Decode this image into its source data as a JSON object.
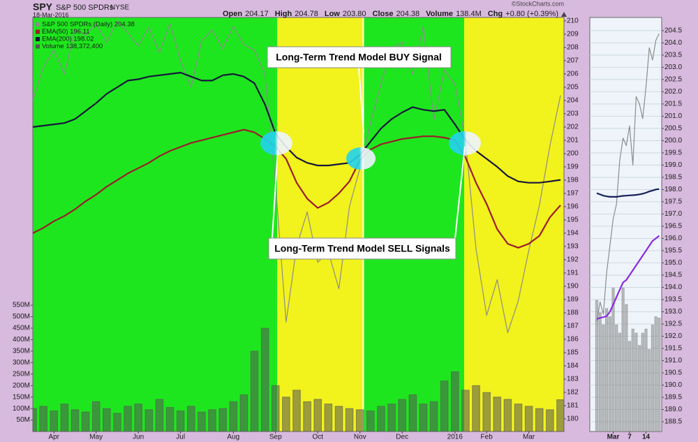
{
  "header": {
    "symbol": "SPY",
    "name": "S&P 500 SPDRs",
    "exchange": "NYSE",
    "date": "18-Mar-2016",
    "watermark": "©StockCharts.com",
    "quote": [
      {
        "label": "Open",
        "value": "204.17"
      },
      {
        "label": "High",
        "value": "204.78"
      },
      {
        "label": "Low",
        "value": "203.80"
      },
      {
        "label": "Close",
        "value": "204.38"
      },
      {
        "label": "Volume",
        "value": "138.4M"
      },
      {
        "label": "Chg",
        "value": "+0.80 (+0.39%)"
      }
    ]
  },
  "chart_data": [
    {
      "type": "line",
      "annotations": [
        "Long-Term Trend Model BUY Signal",
        "Long-Term Trend Model SELL Signals"
      ],
      "categories": [
        null,
        null,
        "Apr",
        null,
        null,
        null,
        "May",
        null,
        null,
        null,
        "Jun",
        null,
        null,
        null,
        "Jul",
        null,
        null,
        null,
        null,
        "Aug",
        null,
        null,
        null,
        "Sep",
        null,
        null,
        null,
        "Oct",
        null,
        null,
        null,
        "Nov",
        null,
        null,
        null,
        "Dec",
        null,
        null,
        null,
        null,
        "2016",
        null,
        null,
        "Feb",
        null,
        null,
        null,
        "Mar",
        null,
        null,
        null
      ],
      "series": [
        {
          "name": "S&P 500 SPDRs (Daily) 204.38",
          "color": "#8c8c8c",
          "values": [
            204.0,
            206.5,
            207.8,
            206.0,
            209.4,
            208.9,
            209.8,
            208.4,
            210.0,
            209.1,
            208.1,
            209.5,
            207.6,
            209.8,
            207.0,
            205.0,
            208.5,
            209.3,
            207.9,
            209.6,
            208.2,
            207.8,
            206.0,
            197.6,
            187.3,
            193.0,
            195.6,
            191.8,
            192.6,
            189.8,
            196.0,
            198.9,
            202.3,
            205.3,
            207.9,
            208.4,
            206.0,
            209.6,
            202.5,
            206.3,
            205.2,
            201.0,
            192.8,
            187.8,
            190.5,
            186.5,
            188.9,
            192.7,
            196.1,
            200.6,
            204.38
          ]
        },
        {
          "name": "EMA(50) 196.11",
          "color": "#9b1c2c",
          "values": [
            194.0,
            194.4,
            194.9,
            195.3,
            195.8,
            196.4,
            196.9,
            197.5,
            198.0,
            198.5,
            198.9,
            199.3,
            199.8,
            200.2,
            200.5,
            200.8,
            201.0,
            201.2,
            201.4,
            201.6,
            201.8,
            201.6,
            201.1,
            200.5,
            199.6,
            197.8,
            196.6,
            195.9,
            196.3,
            197.0,
            197.9,
            199.5,
            200.3,
            200.7,
            200.9,
            201.1,
            201.2,
            201.3,
            201.3,
            201.2,
            201.0,
            199.7,
            197.8,
            196.2,
            194.3,
            193.2,
            192.9,
            193.2,
            193.8,
            195.2,
            196.11
          ]
        },
        {
          "name": "EMA(200) 198.02",
          "color": "#16163c",
          "values": [
            202.0,
            202.1,
            202.2,
            202.3,
            202.6,
            203.2,
            203.8,
            204.5,
            205.0,
            205.5,
            205.6,
            205.8,
            205.9,
            206.0,
            206.1,
            205.8,
            205.5,
            205.5,
            205.9,
            206.0,
            205.8,
            205.3,
            203.7,
            201.5,
            200.5,
            199.7,
            199.3,
            199.1,
            199.1,
            199.2,
            199.3,
            199.9,
            200.9,
            201.9,
            202.6,
            203.1,
            203.5,
            203.3,
            203.2,
            203.3,
            202.2,
            201.0,
            200.2,
            199.6,
            199.0,
            198.3,
            197.9,
            197.8,
            197.8,
            197.9,
            198.02
          ]
        },
        {
          "name": "Volume 138,372,400",
          "color": "#555555",
          "type": "bar",
          "axis": "y2",
          "values": [
            100,
            110,
            90,
            120,
            95,
            85,
            130,
            100,
            80,
            110,
            120,
            95,
            140,
            105,
            90,
            110,
            85,
            95,
            100,
            130,
            160,
            350,
            450,
            200,
            150,
            180,
            130,
            140,
            120,
            110,
            100,
            95,
            90,
            110,
            120,
            140,
            160,
            120,
            130,
            220,
            260,
            180,
            200,
            170,
            150,
            140,
            120,
            110,
            100,
            95,
            138.3724
          ]
        }
      ],
      "ylim": [
        179.05,
        210.26
      ],
      "yticks": [
        180,
        181,
        182,
        183,
        184,
        185,
        186,
        187,
        188,
        189,
        190,
        191,
        192,
        193,
        194,
        195,
        196,
        197,
        198,
        199,
        200,
        201,
        202,
        203,
        204,
        205,
        206,
        207,
        208,
        209,
        210
      ],
      "y2lim": [
        0,
        1803
      ],
      "y2ticks": [
        {
          "value": 50,
          "label": "50M"
        },
        {
          "value": 100,
          "label": "100M"
        },
        {
          "value": 150,
          "label": "150M"
        },
        {
          "value": 200,
          "label": "200M"
        },
        {
          "value": 250,
          "label": "250M"
        },
        {
          "value": 300,
          "label": "300M"
        },
        {
          "value": 350,
          "label": "350M"
        },
        {
          "value": 400,
          "label": "400M"
        },
        {
          "value": 450,
          "label": "450M"
        },
        {
          "value": 500,
          "label": "500M"
        },
        {
          "value": 550,
          "label": "550M"
        }
      ],
      "grid": false
    },
    {
      "type": "line",
      "categories": [
        null,
        null,
        null,
        null,
        null,
        "Mar",
        null,
        null,
        null,
        null,
        "7",
        null,
        null,
        null,
        null,
        "14",
        null,
        null,
        null,
        null
      ],
      "series": [
        {
          "color": "#8c8c8c",
          "values": [
            192.6,
            193.4,
            192.9,
            194.6,
            195.7,
            196.8,
            197.4,
            199.2,
            200.1,
            199.8,
            200.6,
            199.0,
            201.8,
            201.5,
            200.9,
            202.2,
            203.8,
            203.3,
            204.1,
            204.38
          ]
        },
        {
          "color": "#8a2be2",
          "values": [
            192.7,
            192.75,
            192.78,
            192.82,
            193.0,
            193.3,
            193.6,
            193.9,
            194.2,
            194.3,
            194.5,
            194.7,
            194.9,
            195.1,
            195.3,
            195.5,
            195.7,
            195.9,
            196.0,
            196.11
          ]
        },
        {
          "color": "#16205a",
          "values": [
            197.85,
            197.8,
            197.75,
            197.72,
            197.7,
            197.7,
            197.7,
            197.72,
            197.74,
            197.75,
            197.76,
            197.77,
            197.78,
            197.8,
            197.83,
            197.87,
            197.92,
            197.96,
            198.0,
            198.02
          ]
        },
        {
          "color": "#8c8c8c",
          "type": "bar",
          "axis": "y2",
          "values": [
            160,
            145,
            130,
            150,
            140,
            175,
            130,
            120,
            175,
            155,
            110,
            125,
            120,
            105,
            120,
            125,
            100,
            130,
            140,
            138.3724
          ]
        }
      ],
      "ylim": [
        188.1,
        205.04
      ],
      "yticks": [
        188.5,
        {
          "value": 189,
          "label": "189.0"
        },
        189.5,
        {
          "value": 190,
          "label": "190.0"
        },
        190.5,
        {
          "value": 191,
          "label": "191.0"
        },
        191.5,
        {
          "value": 192,
          "label": "192.0"
        },
        192.5,
        {
          "value": 193,
          "label": "193.0"
        },
        193.5,
        {
          "value": 194,
          "label": "194.0"
        },
        194.5,
        {
          "value": 195,
          "label": "195.0"
        },
        195.5,
        {
          "value": 196,
          "label": "196.0"
        },
        196.5,
        {
          "value": 197,
          "label": "197.0"
        },
        197.5,
        {
          "value": 198,
          "label": "198.0"
        },
        198.5,
        {
          "value": 199,
          "label": "199.0"
        },
        199.5,
        {
          "value": 200,
          "label": "200.0"
        },
        200.5,
        {
          "value": 201,
          "label": "201.0"
        },
        201.5,
        {
          "value": 202,
          "label": "202.0"
        },
        202.5,
        {
          "value": 203,
          "label": "203.0"
        },
        203.5,
        {
          "value": 204,
          "label": "204.0"
        },
        204.5
      ],
      "y2lim": [
        0,
        505
      ],
      "grid": true
    }
  ]
}
